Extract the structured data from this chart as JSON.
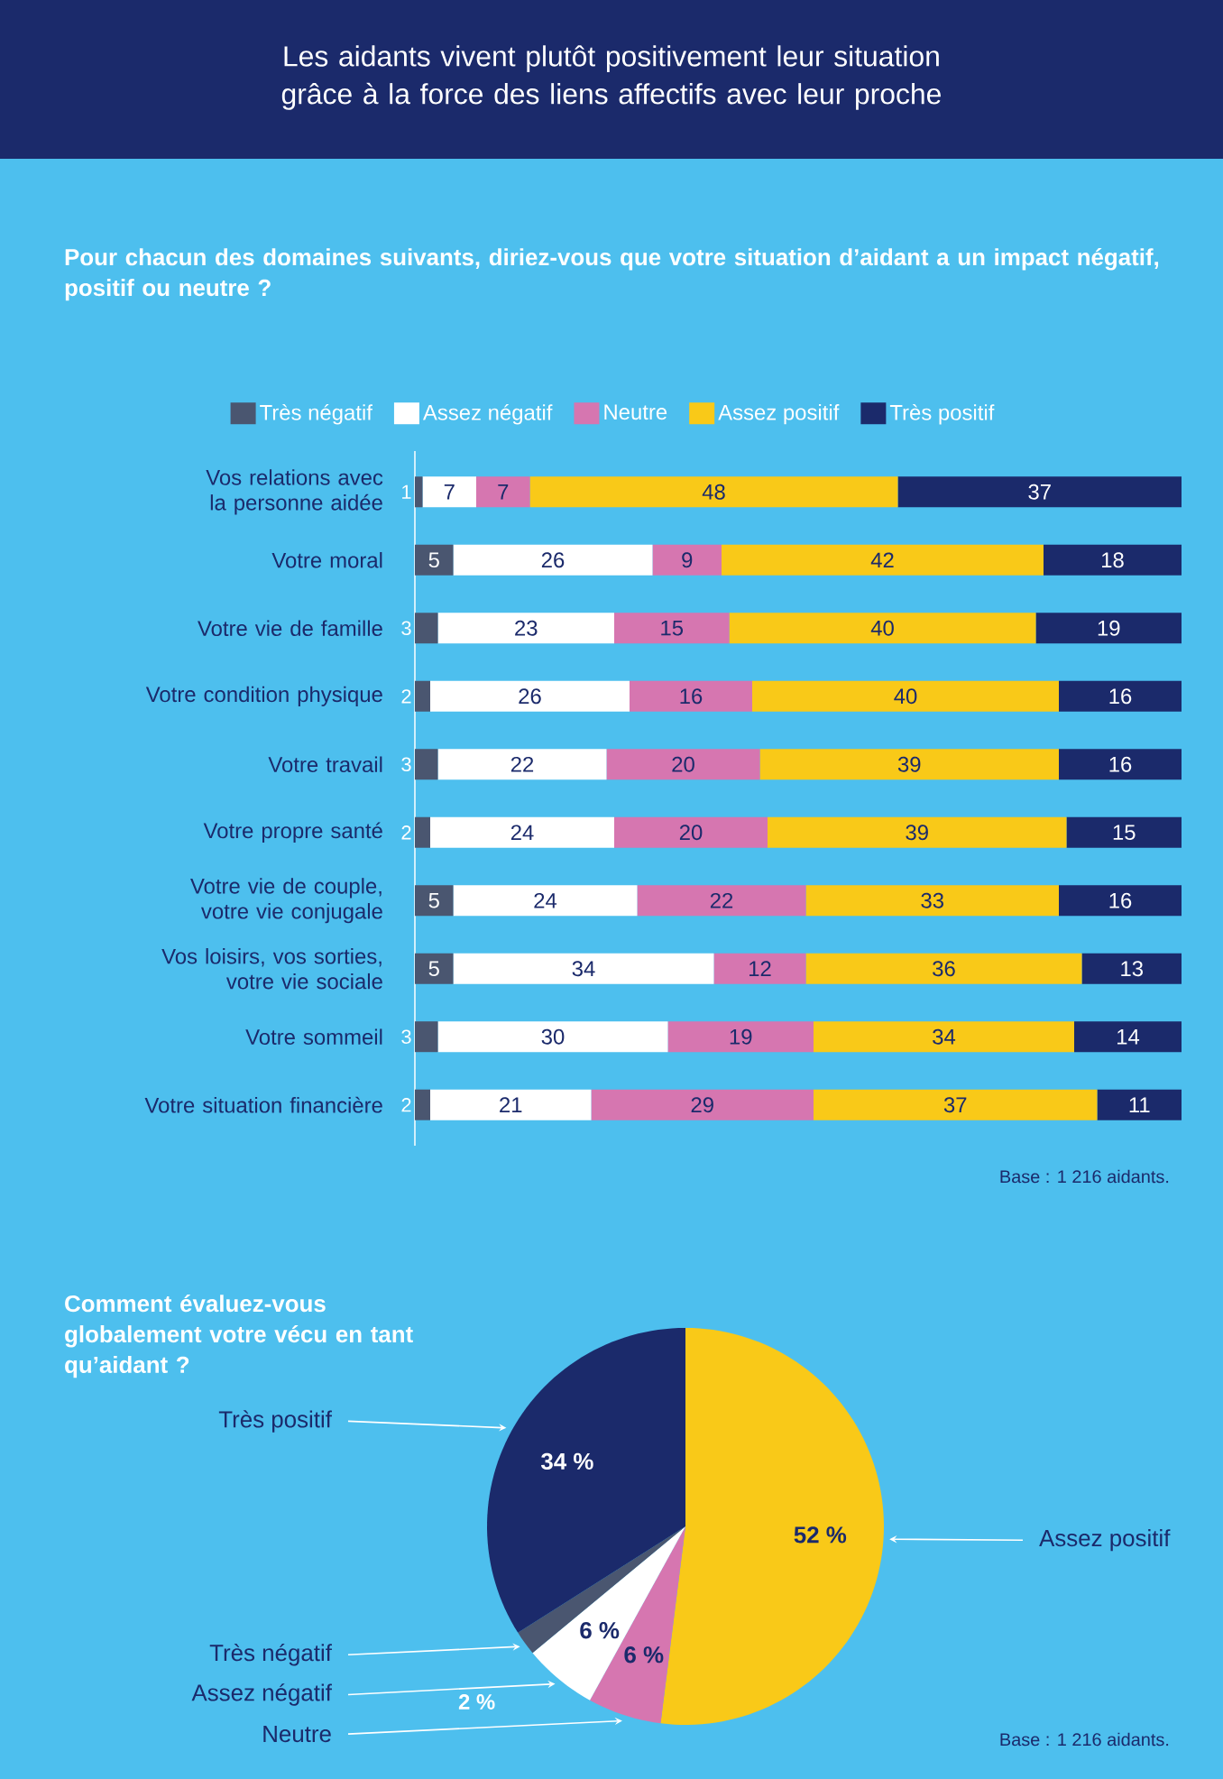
{
  "chart_data": [
    {
      "type": "bar",
      "orientation": "horizontal",
      "stacked": true,
      "data_labels": true,
      "legend": "top",
      "tick_labels": "y",
      "title": "Les aidants vivent plutôt positivement leur situation grâce à la force des liens affectifs avec leur proche",
      "subtitle": "Pour chacun des domaines suivants, diriez-vous que votre situation d’aidant a un impact négatif, positif ou neutre ?",
      "annotations": [
        "Base : 1 216 aidants."
      ],
      "categories": [
        "Vos relations avec la personne aidée",
        "Votre moral",
        "Votre vie de famille",
        "Votre condition physique",
        "Votre travail",
        "Votre propre santé",
        "Votre vie de couple, votre vie conjugale",
        "Vos loisirs, vos sorties, votre vie sociale",
        "Votre sommeil",
        "Votre situation financière"
      ],
      "series": [
        {
          "name": "Très négatif",
          "color": "#4a5670",
          "values": [
            1,
            5,
            3,
            2,
            3,
            2,
            5,
            5,
            3,
            2
          ]
        },
        {
          "name": "Assez négatif",
          "color": "#ffffff",
          "values": [
            7,
            26,
            23,
            26,
            22,
            24,
            24,
            34,
            30,
            21
          ]
        },
        {
          "name": "Neutre",
          "color": "#d676b0",
          "values": [
            7,
            9,
            15,
            16,
            20,
            20,
            22,
            12,
            19,
            29
          ]
        },
        {
          "name": "Assez positif",
          "color": "#f9c918",
          "values": [
            48,
            42,
            40,
            40,
            39,
            39,
            33,
            36,
            34,
            37
          ]
        },
        {
          "name": "Très positif",
          "color": "#1b2a6b",
          "values": [
            37,
            18,
            19,
            16,
            16,
            15,
            16,
            13,
            14,
            11
          ]
        }
      ]
    },
    {
      "type": "pie",
      "title": "Comment évaluez-vous globalement votre vécu en tant qu’aidant ?",
      "annotations": [
        "Base : 1 216 aidants."
      ],
      "categories": [
        "Assez positif",
        "Neutre",
        "Assez négatif",
        "Très négatif",
        "Très positif"
      ],
      "values": [
        52,
        6,
        6,
        2,
        34
      ],
      "value_labels": [
        "52 %",
        "6 %",
        "6 %",
        "2 %",
        "34 %"
      ],
      "colors": [
        "#f9c918",
        "#d676b0",
        "#ffffff",
        "#4a5670",
        "#1b2a6b"
      ]
    }
  ]
}
